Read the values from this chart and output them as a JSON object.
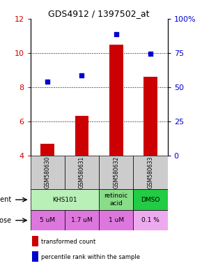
{
  "title": "GDS4912 / 1397502_at",
  "samples": [
    "GSM580630",
    "GSM580631",
    "GSM580632",
    "GSM580633"
  ],
  "bar_values": [
    4.7,
    6.3,
    10.5,
    8.6
  ],
  "scatter_values": [
    8.3,
    8.7,
    11.1,
    9.95
  ],
  "bar_color": "#cc0000",
  "scatter_color": "#0000cc",
  "ylim_left": [
    4,
    12
  ],
  "ylim_right": [
    0,
    100
  ],
  "yticks_left": [
    4,
    6,
    8,
    10,
    12
  ],
  "yticks_right": [
    0,
    25,
    50,
    75,
    100
  ],
  "ytick_labels_right": [
    "0",
    "25",
    "50",
    "75",
    "100%"
  ],
  "agent_spans": [
    [
      0,
      2,
      "KHS101",
      "#b8f0b8"
    ],
    [
      2,
      3,
      "retinoic\nacid",
      "#88dd88"
    ],
    [
      3,
      4,
      "DMSO",
      "#22cc44"
    ]
  ],
  "dose_labels": [
    "5 uM",
    "1.7 uM",
    "1 uM",
    "0.1 %"
  ],
  "dose_colors": [
    "#dd77dd",
    "#dd77dd",
    "#dd77dd",
    "#eeaaee"
  ],
  "sample_bg": "#cccccc",
  "legend_bar_label": "transformed count",
  "legend_scatter_label": "percentile rank within the sample",
  "bar_bottom": 4,
  "dotted_lines": [
    6,
    8,
    10
  ]
}
